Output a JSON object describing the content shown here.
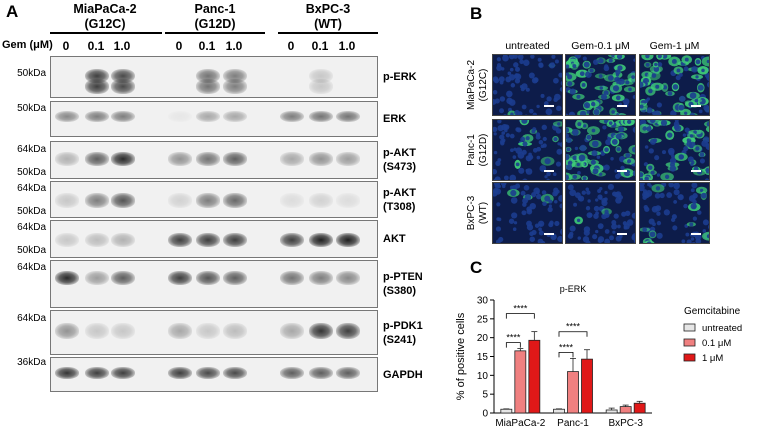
{
  "panel_a": {
    "letter": "A",
    "gem_label": "Gem (μM)",
    "cell_lines": [
      {
        "name": "MiaPaCa-2",
        "genotype": "(G12C)"
      },
      {
        "name": "Panc-1",
        "genotype": "(G12D)"
      },
      {
        "name": "BxPC-3",
        "genotype": "(WT)"
      }
    ],
    "doses": [
      "0",
      "0.1",
      "1.0",
      "0",
      "0.1",
      "1.0",
      "0",
      "0.1",
      "1.0"
    ],
    "mw_markers": [
      "50kDa",
      "50kDa",
      "64kDa",
      "50kDa",
      "64kDa",
      "50kDa",
      "64kDa",
      "50kDa",
      "64kDa",
      "64kDa",
      "36kDa"
    ],
    "blots": [
      {
        "label": "p-ERK",
        "sub": ""
      },
      {
        "label": "ERK",
        "sub": ""
      },
      {
        "label": "p-AKT",
        "sub": "(S473)"
      },
      {
        "label": "p-AKT",
        "sub": "(T308)"
      },
      {
        "label": "AKT",
        "sub": ""
      },
      {
        "label": "p-PTEN",
        "sub": "(S380)"
      },
      {
        "label": "p-PDK1",
        "sub": "(S241)"
      },
      {
        "label": "GAPDH",
        "sub": ""
      }
    ]
  },
  "panel_b": {
    "letter": "B",
    "columns": [
      "untreated",
      "Gem-0.1 μM",
      "Gem-1 μM"
    ],
    "rows": [
      {
        "name": "MiaPaCa-2",
        "genotype": "(G12C)"
      },
      {
        "name": "Panc-1",
        "genotype": "(G12D)"
      },
      {
        "name": "BxPC-3",
        "genotype": "(WT)"
      }
    ],
    "colors": {
      "nuclei": "#1c3d8f",
      "stain": "#3fd07a",
      "background": "#0d1c4a"
    }
  },
  "panel_c": {
    "letter": "C",
    "chart_data": {
      "type": "bar",
      "title": "p-ERK",
      "ylabel": "% of positive cells",
      "xlabel": "",
      "ylim": [
        0,
        30
      ],
      "yticks": [
        "0",
        "5",
        "10",
        "15",
        "20",
        "25",
        "30"
      ],
      "categories": [
        "MiaPaCa-2",
        "Panc-1",
        "BxPC-3"
      ],
      "legend_title": "Gemcitabine",
      "legend_position": "right",
      "series": [
        {
          "name": "untreated",
          "color": "#e6e6e6",
          "values": [
            1.0,
            1.0,
            0.8
          ],
          "errors": [
            0.1,
            0.1,
            0.5
          ]
        },
        {
          "name": "0.1 μM",
          "color": "#f08080",
          "values": [
            16.5,
            11.0,
            1.7
          ],
          "errors": [
            0.6,
            3.5,
            0.4
          ]
        },
        {
          "name": "1 μM",
          "color": "#e01818",
          "values": [
            19.3,
            14.3,
            2.6
          ],
          "errors": [
            2.3,
            2.5,
            0.5
          ]
        }
      ],
      "significance": [
        {
          "group": "MiaPaCa-2",
          "label": "****",
          "compare": "untreated vs 0.1 μM"
        },
        {
          "group": "MiaPaCa-2",
          "label": "****",
          "compare": "untreated vs 1 μM"
        },
        {
          "group": "Panc-1",
          "label": "****",
          "compare": "untreated vs 0.1 μM"
        },
        {
          "group": "Panc-1",
          "label": "****",
          "compare": "untreated vs 1 μM"
        }
      ]
    }
  }
}
